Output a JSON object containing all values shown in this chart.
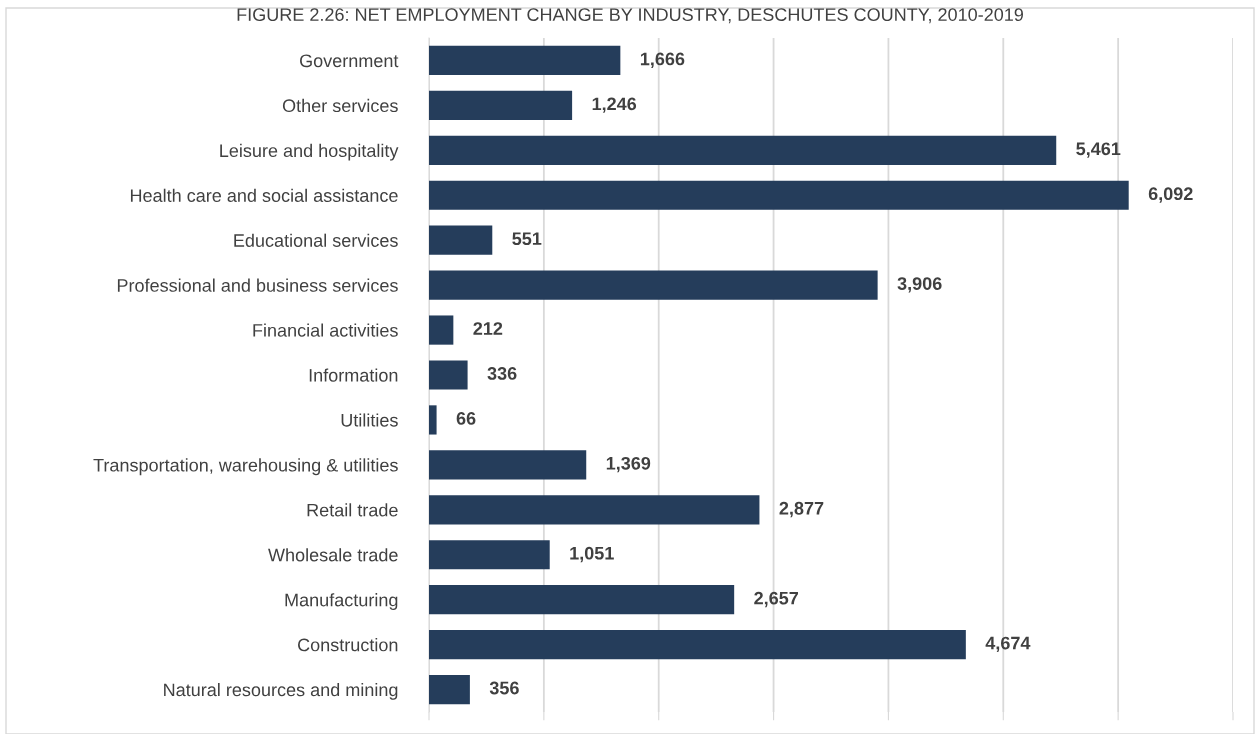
{
  "chart_data": {
    "type": "bar",
    "orientation": "horizontal",
    "title": "FIGURE 2.26: NET EMPLOYMENT CHANGE BY INDUSTRY, DESCHUTES COUNTY, 2010-2019",
    "categories": [
      "Government",
      "Other services",
      "Leisure and hospitality",
      "Health care and social assistance",
      "Educational services",
      "Professional and business services",
      "Financial activities",
      "Information",
      "Utilities",
      "Transportation, warehousing & utilities",
      "Retail trade",
      "Wholesale trade",
      "Manufacturing",
      "Construction",
      "Natural resources and mining"
    ],
    "values": [
      1666,
      1246,
      5461,
      6092,
      551,
      3906,
      212,
      336,
      66,
      1369,
      2877,
      1051,
      2657,
      4674,
      356
    ],
    "value_labels": [
      "1,666",
      "1,246",
      "5,461",
      "6,092",
      "551",
      "3,906",
      "212",
      "336",
      "66",
      "1,369",
      "2,877",
      "1,051",
      "2,657",
      "4,674",
      "356"
    ],
    "color": "#253d5b",
    "xlim": [
      0,
      7000
    ],
    "xticks": [
      {
        "value": 0,
        "label": null
      },
      {
        "value": 1000,
        "label": null
      },
      {
        "value": 2000,
        "label": null
      },
      {
        "value": 3000,
        "label": null
      },
      {
        "value": 4000,
        "label": null
      },
      {
        "value": 5000,
        "label": null
      },
      {
        "value": 6000,
        "label": null
      },
      {
        "value": 7000,
        "label": null
      }
    ],
    "tick_labels": "y",
    "grid": "x",
    "legend": false
  }
}
